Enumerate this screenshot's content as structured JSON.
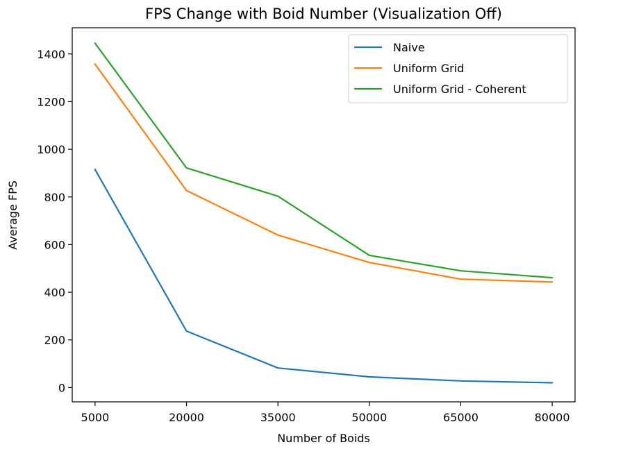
{
  "chart_data": {
    "type": "line",
    "title": "FPS Change with Boid Number (Visualization Off)",
    "xlabel": "Number of Boids",
    "ylabel": "Average FPS",
    "x": [
      5000,
      20000,
      35000,
      50000,
      65000,
      80000
    ],
    "x_ticks": [
      "5000",
      "20000",
      "35000",
      "50000",
      "65000",
      "80000"
    ],
    "y_ticks": [
      0,
      200,
      400,
      600,
      800,
      1000,
      1200,
      1400
    ],
    "ylim": [
      -60,
      1510
    ],
    "grid": false,
    "legend_position": "upper-right",
    "series": [
      {
        "name": "Naive",
        "color": "#1f77b4",
        "values": [
          915,
          237,
          82,
          45,
          28,
          20
        ]
      },
      {
        "name": "Uniform Grid",
        "color": "#ff7f0e",
        "values": [
          1357,
          827,
          640,
          525,
          455,
          443
        ]
      },
      {
        "name": "Uniform Grid - Coherent",
        "color": "#2ca02c",
        "values": [
          1445,
          922,
          803,
          555,
          490,
          461
        ]
      }
    ]
  }
}
